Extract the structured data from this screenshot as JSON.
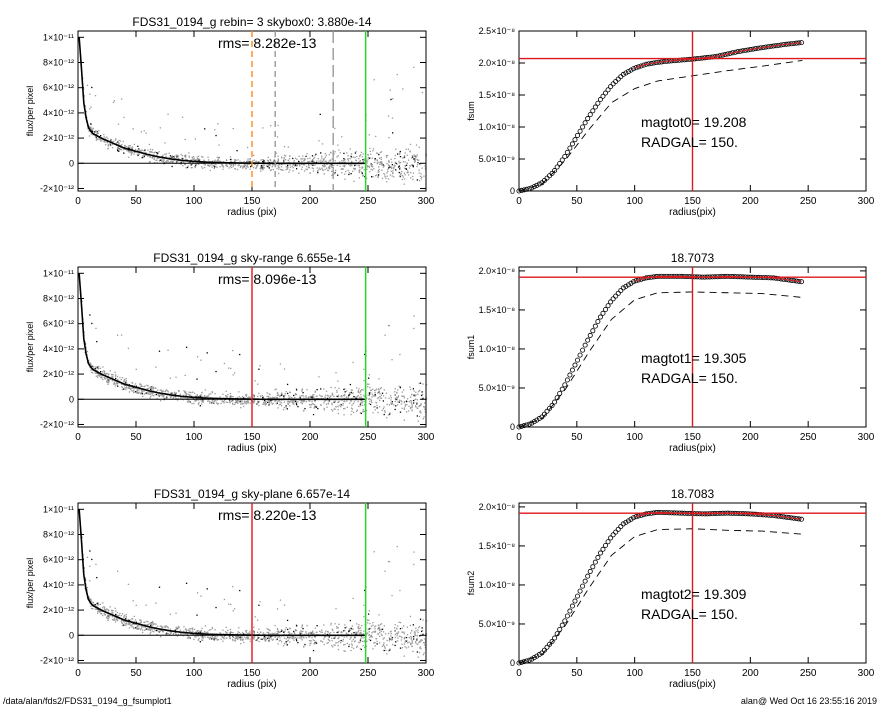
{
  "footer": {
    "left": "/data/alan/fds2/FDS31_0194_g_fsumplot1",
    "right": "alan@  Wed Oct 16 23:55:16 2019"
  },
  "colors": {
    "black": "#000000",
    "grey": "#999999",
    "red": "#e0161b",
    "green": "#18e018",
    "orange": "#ff8c1a"
  },
  "chart_data": [
    {
      "type": "scatter",
      "title": "FDS31_0194_g rebin= 3    skybox0:  3.880e-14",
      "annotation": "rms= 8.282e-13",
      "xlabel": "radius (pix)",
      "ylabel": "flux/per pixel",
      "xlim": [
        0,
        300
      ],
      "ylim": [
        -2.2e-12,
        1.05e-11
      ],
      "xticks": [
        0,
        50,
        100,
        150,
        200,
        250,
        300
      ],
      "yticks": [
        -2e-12,
        0,
        2e-12,
        4e-12,
        6e-12,
        8e-12,
        1e-11
      ],
      "ytick_labels": [
        "-2×10⁻¹²",
        "0",
        "2×10⁻¹²",
        "4×10⁻¹²",
        "6×10⁻¹²",
        "8×10⁻¹²",
        "1×10⁻¹¹"
      ],
      "profile": [
        [
          1,
          1e-11
        ],
        [
          3,
          7.5e-12
        ],
        [
          5,
          4.8e-12
        ],
        [
          8,
          3e-12
        ],
        [
          12,
          2.4e-12
        ],
        [
          20,
          2e-12
        ],
        [
          30,
          1.6e-12
        ],
        [
          40,
          1.2e-12
        ],
        [
          50,
          9.5e-13
        ],
        [
          60,
          7e-13
        ],
        [
          70,
          5e-13
        ],
        [
          80,
          3.5e-13
        ],
        [
          90,
          2.3e-13
        ],
        [
          100,
          1.5e-13
        ],
        [
          110,
          9e-14
        ],
        [
          125,
          5e-14
        ],
        [
          140,
          2e-14
        ],
        [
          160,
          0
        ],
        [
          200,
          0
        ],
        [
          248,
          0
        ]
      ],
      "vlines": [
        {
          "x": 150,
          "color": "orange",
          "style": "dash"
        },
        {
          "x": 170,
          "color": "grey",
          "style": "dash"
        },
        {
          "x": 220,
          "color": "grey",
          "style": "longdash"
        },
        {
          "x": 248,
          "color": "green",
          "style": "solid"
        }
      ],
      "hlines": [
        {
          "y": 0,
          "color": "black"
        }
      ]
    },
    {
      "type": "line",
      "title": "",
      "xlabel": "radius(pix)",
      "ylabel": "fsum",
      "xlim": [
        0,
        300
      ],
      "ylim": [
        0,
        2.5e-08
      ],
      "xticks": [
        0,
        50,
        100,
        150,
        200,
        250,
        300
      ],
      "yticks": [
        0,
        5e-09,
        1e-08,
        1.5e-08,
        2e-08,
        2.5e-08
      ],
      "ytick_labels": [
        "0",
        "5.0×10⁻⁹",
        "1.0×10⁻⁸",
        "1.5×10⁻⁸",
        "2.0×10⁻⁸",
        "2.5×10⁻⁸"
      ],
      "curve": [
        [
          0,
          0
        ],
        [
          10,
          4e-10
        ],
        [
          20,
          1.3e-09
        ],
        [
          30,
          3e-09
        ],
        [
          40,
          5.5e-09
        ],
        [
          50,
          8.5e-09
        ],
        [
          60,
          1.15e-08
        ],
        [
          70,
          1.42e-08
        ],
        [
          80,
          1.65e-08
        ],
        [
          90,
          1.82e-08
        ],
        [
          100,
          1.92e-08
        ],
        [
          110,
          1.98e-08
        ],
        [
          120,
          2.01e-08
        ],
        [
          130,
          2.03e-08
        ],
        [
          150,
          2.06e-08
        ],
        [
          170,
          2.1e-08
        ],
        [
          190,
          2.18e-08
        ],
        [
          210,
          2.24e-08
        ],
        [
          230,
          2.29e-08
        ],
        [
          245,
          2.32e-08
        ]
      ],
      "dashed": [
        [
          0,
          0
        ],
        [
          20,
          1.1e-09
        ],
        [
          40,
          4.8e-09
        ],
        [
          60,
          9.5e-09
        ],
        [
          80,
          1.38e-08
        ],
        [
          100,
          1.6e-08
        ],
        [
          120,
          1.72e-08
        ],
        [
          150,
          1.8e-08
        ],
        [
          180,
          1.88e-08
        ],
        [
          210,
          1.95e-08
        ],
        [
          245,
          2.04e-08
        ]
      ],
      "vline": 150,
      "hline": 2.07e-08,
      "text1": "magtot0=  19.208",
      "text2": "RADGAL=    150."
    },
    {
      "type": "scatter",
      "title": "FDS31_0194_g sky-range  6.655e-14",
      "annotation": "rms= 8.096e-13",
      "xlabel": "radius (pix)",
      "ylabel": "flux/per pixel",
      "xlim": [
        0,
        300
      ],
      "ylim": [
        -2.2e-12,
        1.05e-11
      ],
      "xticks": [
        0,
        50,
        100,
        150,
        200,
        250,
        300
      ],
      "yticks": [
        -2e-12,
        0,
        2e-12,
        4e-12,
        6e-12,
        8e-12,
        1e-11
      ],
      "ytick_labels": [
        "-2×10⁻¹²",
        "0",
        "2×10⁻¹²",
        "4×10⁻¹²",
        "6×10⁻¹²",
        "8×10⁻¹²",
        "1×10⁻¹¹"
      ],
      "profile": [
        [
          1,
          1e-11
        ],
        [
          3,
          7.5e-12
        ],
        [
          5,
          4.8e-12
        ],
        [
          8,
          3e-12
        ],
        [
          12,
          2.4e-12
        ],
        [
          20,
          2e-12
        ],
        [
          30,
          1.6e-12
        ],
        [
          40,
          1.2e-12
        ],
        [
          50,
          9.5e-13
        ],
        [
          60,
          7e-13
        ],
        [
          70,
          5e-13
        ],
        [
          80,
          3.5e-13
        ],
        [
          90,
          2.3e-13
        ],
        [
          100,
          1.5e-13
        ],
        [
          110,
          9e-14
        ],
        [
          125,
          5e-14
        ],
        [
          140,
          2e-14
        ],
        [
          160,
          0
        ],
        [
          200,
          0
        ],
        [
          248,
          0
        ]
      ],
      "vlines": [
        {
          "x": 150,
          "color": "red",
          "style": "solid"
        },
        {
          "x": 248,
          "color": "green",
          "style": "solid"
        }
      ],
      "hlines": [
        {
          "y": 0,
          "color": "black"
        }
      ]
    },
    {
      "type": "line",
      "title": "18.7073",
      "xlabel": "radius(pix)",
      "ylabel": "fsum1",
      "xlim": [
        0,
        300
      ],
      "ylim": [
        0,
        2.05e-08
      ],
      "xticks": [
        0,
        50,
        100,
        150,
        200,
        250,
        300
      ],
      "yticks": [
        0,
        5e-09,
        1e-08,
        1.5e-08,
        2e-08
      ],
      "ytick_labels": [
        "0",
        "5.0×10⁻⁹",
        "1.0×10⁻⁸",
        "1.5×10⁻⁸",
        "2.0×10⁻⁸"
      ],
      "curve": [
        [
          0,
          0
        ],
        [
          10,
          4e-10
        ],
        [
          20,
          1.3e-09
        ],
        [
          30,
          3e-09
        ],
        [
          40,
          5.5e-09
        ],
        [
          50,
          8.4e-09
        ],
        [
          60,
          1.13e-08
        ],
        [
          70,
          1.4e-08
        ],
        [
          80,
          1.62e-08
        ],
        [
          90,
          1.78e-08
        ],
        [
          100,
          1.87e-08
        ],
        [
          110,
          1.91e-08
        ],
        [
          120,
          1.93e-08
        ],
        [
          140,
          1.93e-08
        ],
        [
          160,
          1.92e-08
        ],
        [
          180,
          1.93e-08
        ],
        [
          200,
          1.92e-08
        ],
        [
          220,
          1.91e-08
        ],
        [
          245,
          1.86e-08
        ]
      ],
      "dashed": [
        [
          0,
          0
        ],
        [
          20,
          1.1e-09
        ],
        [
          40,
          4.8e-09
        ],
        [
          60,
          9.5e-09
        ],
        [
          80,
          1.38e-08
        ],
        [
          100,
          1.63e-08
        ],
        [
          120,
          1.72e-08
        ],
        [
          150,
          1.73e-08
        ],
        [
          180,
          1.72e-08
        ],
        [
          210,
          1.71e-08
        ],
        [
          245,
          1.66e-08
        ]
      ],
      "vline": 150,
      "hline": 1.92e-08,
      "text1": "magtot1=  19.305",
      "text2": "RADGAL=    150."
    },
    {
      "type": "scatter",
      "title": "FDS31_0194_g sky-plane  6.657e-14",
      "annotation": "rms= 8.220e-13",
      "xlabel": "radius (pix)",
      "ylabel": "flux/per pixel",
      "xlim": [
        0,
        300
      ],
      "ylim": [
        -2.2e-12,
        1.05e-11
      ],
      "xticks": [
        0,
        50,
        100,
        150,
        200,
        250,
        300
      ],
      "yticks": [
        -2e-12,
        0,
        2e-12,
        4e-12,
        6e-12,
        8e-12,
        1e-11
      ],
      "ytick_labels": [
        "-2×10⁻¹²",
        "0",
        "2×10⁻¹²",
        "4×10⁻¹²",
        "6×10⁻¹²",
        "8×10⁻¹²",
        "1×10⁻¹¹"
      ],
      "profile": [
        [
          1,
          1e-11
        ],
        [
          3,
          7.5e-12
        ],
        [
          5,
          4.8e-12
        ],
        [
          8,
          3e-12
        ],
        [
          12,
          2.4e-12
        ],
        [
          20,
          2e-12
        ],
        [
          30,
          1.6e-12
        ],
        [
          40,
          1.2e-12
        ],
        [
          50,
          9.5e-13
        ],
        [
          60,
          7e-13
        ],
        [
          70,
          5e-13
        ],
        [
          80,
          3.5e-13
        ],
        [
          90,
          2.3e-13
        ],
        [
          100,
          1.5e-13
        ],
        [
          110,
          9e-14
        ],
        [
          125,
          5e-14
        ],
        [
          140,
          2e-14
        ],
        [
          160,
          0
        ],
        [
          200,
          0
        ],
        [
          248,
          0
        ]
      ],
      "vlines": [
        {
          "x": 150,
          "color": "red",
          "style": "solid"
        },
        {
          "x": 248,
          "color": "green",
          "style": "solid"
        }
      ],
      "hlines": [
        {
          "y": 0,
          "color": "black"
        }
      ]
    },
    {
      "type": "line",
      "title": "18.7083",
      "xlabel": "radius(pix)",
      "ylabel": "fsum2",
      "xlim": [
        0,
        300
      ],
      "ylim": [
        0,
        2.05e-08
      ],
      "xticks": [
        0,
        50,
        100,
        150,
        200,
        250,
        300
      ],
      "yticks": [
        0,
        5e-09,
        1e-08,
        1.5e-08,
        2e-08
      ],
      "ytick_labels": [
        "0",
        "5.0×10⁻⁹",
        "1.0×10⁻⁸",
        "1.5×10⁻⁸",
        "2.0×10⁻⁸"
      ],
      "curve": [
        [
          0,
          0
        ],
        [
          10,
          4e-10
        ],
        [
          20,
          1.3e-09
        ],
        [
          30,
          3e-09
        ],
        [
          40,
          5.5e-09
        ],
        [
          50,
          8.4e-09
        ],
        [
          60,
          1.13e-08
        ],
        [
          70,
          1.4e-08
        ],
        [
          80,
          1.62e-08
        ],
        [
          90,
          1.78e-08
        ],
        [
          100,
          1.87e-08
        ],
        [
          110,
          1.91e-08
        ],
        [
          120,
          1.93e-08
        ],
        [
          140,
          1.92e-08
        ],
        [
          160,
          1.91e-08
        ],
        [
          180,
          1.92e-08
        ],
        [
          200,
          1.91e-08
        ],
        [
          220,
          1.89e-08
        ],
        [
          245,
          1.84e-08
        ]
      ],
      "dashed": [
        [
          0,
          0
        ],
        [
          20,
          1.1e-09
        ],
        [
          40,
          4.8e-09
        ],
        [
          60,
          9.5e-09
        ],
        [
          80,
          1.38e-08
        ],
        [
          100,
          1.62e-08
        ],
        [
          120,
          1.71e-08
        ],
        [
          150,
          1.72e-08
        ],
        [
          180,
          1.7e-08
        ],
        [
          210,
          1.69e-08
        ],
        [
          245,
          1.65e-08
        ]
      ],
      "vline": 150,
      "hline": 1.92e-08,
      "text1": "magtot2=  19.309",
      "text2": "RADGAL=    150."
    }
  ]
}
